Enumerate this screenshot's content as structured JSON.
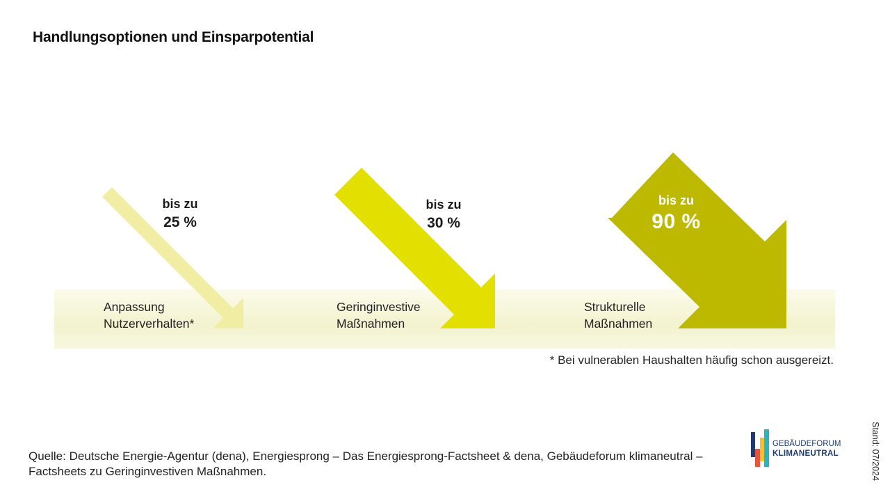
{
  "title": "Handlungsoptionen und Einsparpotential",
  "options": [
    {
      "label_line1": "Anpassung",
      "label_line2": "Nutzerverhalten*",
      "prefix": "bis zu",
      "value_text": "25 %",
      "max_percent": 25,
      "color": "#f1eea4"
    },
    {
      "label_line1": "Geringinvestive",
      "label_line2": "Maßnahmen",
      "prefix": "bis zu",
      "value_text": "30 %",
      "max_percent": 30,
      "color": "#e3df00"
    },
    {
      "label_line1": "Strukturelle",
      "label_line2": "Maßnahmen",
      "prefix": "bis zu",
      "value_text": "90 %",
      "max_percent": 90,
      "color": "#bdb900"
    }
  ],
  "band_color": "#f4f4d2",
  "footnote": "* Bei vulnerablen Haushalten häufig schon ausgereizt.",
  "source": "Quelle: Deutsche Energie-Agentur (dena), Energiesprong – Das Energiesprong-Factsheet & dena, Gebäudeforum klimaneutral – Factsheets zu Geringinvestiven Maßnahmen.",
  "logo": {
    "line1": "GEBÄUDEFORUM",
    "line2": "KLIMANEUTRAL",
    "colors": [
      "#1f3c72",
      "#e2553f",
      "#f2c230",
      "#2bb3c0"
    ]
  },
  "stand": "Stand: 07/2024"
}
